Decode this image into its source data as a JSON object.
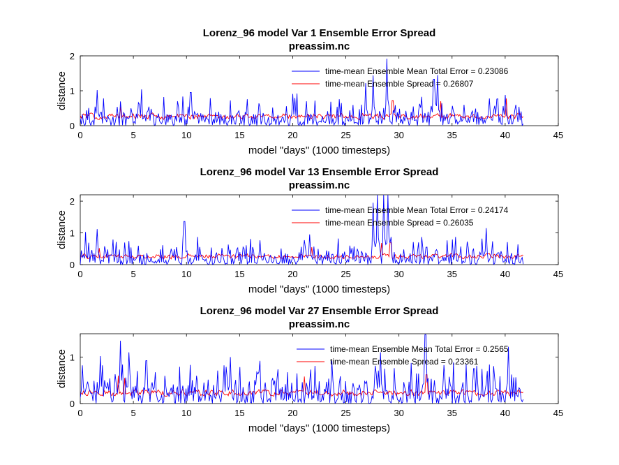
{
  "figure": {
    "background": "#ffffff"
  },
  "chart_data": [
    {
      "type": "line",
      "title": "Lorenz_96 model Var 1 Ensemble Error Spread",
      "subtitle": "preassim.nc",
      "xlabel": "model \"days\" (1000 timesteps)",
      "ylabel": "distance",
      "xlim": [
        0,
        45
      ],
      "ylim": [
        0,
        2
      ],
      "xticks": [
        "0",
        "5",
        "10",
        "15",
        "20",
        "25",
        "30",
        "35",
        "40",
        "45"
      ],
      "yticks": [
        "0",
        "1",
        "2"
      ],
      "grid": false,
      "legend_position": "top-right",
      "series": [
        {
          "name": "time-mean Ensemble Mean Total Error = 0.23086",
          "color": "#0000ff",
          "mean": 0.23,
          "spikes": [
            [
              1.6,
              1.02
            ],
            [
              10.4,
              0.95
            ],
            [
              20.0,
              0.91
            ],
            [
              26.9,
              1.22
            ],
            [
              27.6,
              1.44
            ],
            [
              28.9,
              1.92
            ],
            [
              33.3,
              1.33
            ],
            [
              33.6,
              1.45
            ],
            [
              38.5,
              0.78
            ],
            [
              40.0,
              0.88
            ]
          ]
        },
        {
          "name": "time-mean Ensemble Spread = 0.26807",
          "color": "#ff0000",
          "mean": 0.27,
          "spikes": [
            [
              3.8,
              0.55
            ],
            [
              29.4,
              0.72
            ],
            [
              33.9,
              0.7
            ],
            [
              40.1,
              0.78
            ]
          ]
        }
      ]
    },
    {
      "type": "line",
      "title": "Lorenz_96 model Var 13 Ensemble Error Spread",
      "subtitle": "preassim.nc",
      "xlabel": "model \"days\" (1000 timesteps)",
      "ylabel": "distance",
      "xlim": [
        0,
        45
      ],
      "ylim": [
        0,
        2.2
      ],
      "xticks": [
        "0",
        "5",
        "10",
        "15",
        "20",
        "25",
        "30",
        "35",
        "40",
        "45"
      ],
      "yticks": [
        "0",
        "1",
        "2"
      ],
      "grid": false,
      "legend_position": "top-right",
      "series": [
        {
          "name": "time-mean Ensemble Mean Total Error = 0.24174",
          "color": "#0000ff",
          "mean": 0.24,
          "spikes": [
            [
              1.6,
              1.12
            ],
            [
              9.8,
              1.36
            ],
            [
              21.6,
              0.95
            ],
            [
              27.6,
              1.95
            ],
            [
              28.0,
              2.2
            ],
            [
              28.6,
              2.2
            ],
            [
              29.0,
              2.2
            ],
            [
              38.2,
              1.15
            ],
            [
              37.8,
              0.82
            ]
          ]
        },
        {
          "name": "time-mean Ensemble Spread = 0.26035",
          "color": "#ff0000",
          "mean": 0.26,
          "spikes": [
            [
              1.8,
              0.52
            ],
            [
              21.8,
              0.55
            ],
            [
              28.4,
              0.68
            ],
            [
              29.2,
              0.7
            ]
          ]
        }
      ]
    },
    {
      "type": "line",
      "title": "Lorenz_96 model Var 27 Ensemble Error Spread",
      "subtitle": "preassim.nc",
      "xlabel": "model \"days\" (1000 timesteps)",
      "ylabel": "distance",
      "xlim": [
        0,
        45
      ],
      "ylim": [
        0,
        1.5
      ],
      "xticks": [
        "0",
        "5",
        "10",
        "15",
        "20",
        "25",
        "30",
        "35",
        "40",
        "45"
      ],
      "yticks": [
        "0",
        "1"
      ],
      "grid": false,
      "legend_position": "top-right",
      "series": [
        {
          "name": "time-mean Ensemble Mean Total Error = 0.2565",
          "color": "#0000ff",
          "mean": 0.26,
          "spikes": [
            [
              0.2,
              0.82
            ],
            [
              1.9,
              1.02
            ],
            [
              3.8,
              1.35
            ],
            [
              4.6,
              1.1
            ],
            [
              6.2,
              0.92
            ],
            [
              13.5,
              0.82
            ],
            [
              14.1,
              1.0
            ],
            [
              23.7,
              0.92
            ],
            [
              28.3,
              1.1
            ],
            [
              32.5,
              1.48
            ],
            [
              40.3,
              1.22
            ],
            [
              37.1,
              0.75
            ]
          ]
        },
        {
          "name": "time-mean Ensemble Spread = 0.23361",
          "color": "#ff0000",
          "mean": 0.23,
          "spikes": [
            [
              3.6,
              0.6
            ],
            [
              4.2,
              0.55
            ],
            [
              21.1,
              0.58
            ],
            [
              32.6,
              0.62
            ]
          ]
        }
      ]
    }
  ]
}
